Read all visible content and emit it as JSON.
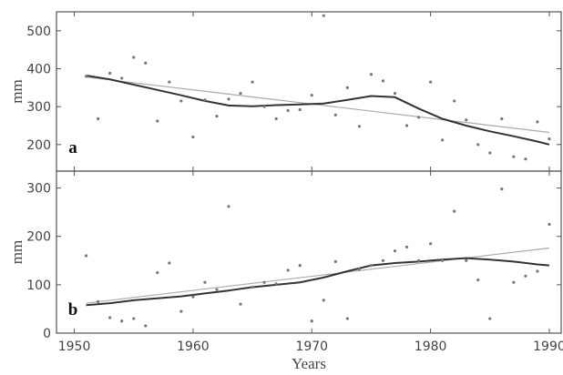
{
  "chart_data": {
    "type": "scatter",
    "xlabel": "Years",
    "xlim": [
      1948.5,
      1991
    ],
    "x_ticks": [
      1950,
      1960,
      1970,
      1980,
      1990
    ],
    "panels": [
      {
        "label": "a",
        "ylabel": "mm",
        "ylim": [
          130,
          550
        ],
        "y_ticks": [
          200,
          300,
          400,
          500
        ],
        "points": [
          [
            1951,
            380
          ],
          [
            1952,
            268
          ],
          [
            1953,
            388
          ],
          [
            1954,
            375
          ],
          [
            1955,
            430
          ],
          [
            1956,
            415
          ],
          [
            1957,
            262
          ],
          [
            1958,
            365
          ],
          [
            1959,
            315
          ],
          [
            1960,
            220
          ],
          [
            1961,
            318
          ],
          [
            1962,
            275
          ],
          [
            1963,
            320
          ],
          [
            1964,
            335
          ],
          [
            1965,
            365
          ],
          [
            1966,
            300
          ],
          [
            1967,
            268
          ],
          [
            1968,
            290
          ],
          [
            1969,
            292
          ],
          [
            1970,
            330
          ],
          [
            1971,
            540
          ],
          [
            1972,
            278
          ],
          [
            1973,
            350
          ],
          [
            1974,
            248
          ],
          [
            1975,
            385
          ],
          [
            1976,
            368
          ],
          [
            1977,
            335
          ],
          [
            1978,
            250
          ],
          [
            1979,
            272
          ],
          [
            1980,
            365
          ],
          [
            1981,
            212
          ],
          [
            1982,
            315
          ],
          [
            1983,
            265
          ],
          [
            1984,
            200
          ],
          [
            1985,
            178
          ],
          [
            1986,
            268
          ],
          [
            1987,
            168
          ],
          [
            1988,
            162
          ],
          [
            1989,
            260
          ],
          [
            1990,
            215
          ]
        ],
        "smooth": [
          [
            1951,
            382
          ],
          [
            1953,
            372
          ],
          [
            1955,
            358
          ],
          [
            1957,
            344
          ],
          [
            1959,
            330
          ],
          [
            1961,
            315
          ],
          [
            1963,
            303
          ],
          [
            1965,
            301
          ],
          [
            1967,
            304
          ],
          [
            1969,
            306
          ],
          [
            1971,
            308
          ],
          [
            1973,
            318
          ],
          [
            1975,
            328
          ],
          [
            1977,
            325
          ],
          [
            1979,
            295
          ],
          [
            1981,
            268
          ],
          [
            1983,
            250
          ],
          [
            1985,
            235
          ],
          [
            1987,
            222
          ],
          [
            1989,
            208
          ],
          [
            1990,
            200
          ]
        ],
        "trend": [
          [
            1951,
            378
          ],
          [
            1990,
            232
          ]
        ]
      },
      {
        "label": "b",
        "ylabel": "mm",
        "ylim": [
          0,
          335
        ],
        "y_ticks": [
          0,
          100,
          200,
          300
        ],
        "points": [
          [
            1951,
            160
          ],
          [
            1952,
            65
          ],
          [
            1953,
            32
          ],
          [
            1954,
            25
          ],
          [
            1955,
            30
          ],
          [
            1956,
            15
          ],
          [
            1957,
            125
          ],
          [
            1958,
            145
          ],
          [
            1959,
            45
          ],
          [
            1960,
            75
          ],
          [
            1961,
            105
          ],
          [
            1962,
            90
          ],
          [
            1963,
            262
          ],
          [
            1964,
            60
          ],
          [
            1965,
            95
          ],
          [
            1966,
            105
          ],
          [
            1967,
            102
          ],
          [
            1968,
            130
          ],
          [
            1969,
            140
          ],
          [
            1970,
            25
          ],
          [
            1971,
            68
          ],
          [
            1972,
            148
          ],
          [
            1973,
            30
          ],
          [
            1974,
            132
          ],
          [
            1975,
            140
          ],
          [
            1976,
            150
          ],
          [
            1977,
            170
          ],
          [
            1978,
            178
          ],
          [
            1979,
            150
          ],
          [
            1980,
            185
          ],
          [
            1981,
            150
          ],
          [
            1982,
            252
          ],
          [
            1983,
            150
          ],
          [
            1984,
            110
          ],
          [
            1985,
            30
          ],
          [
            1986,
            298
          ],
          [
            1987,
            105
          ],
          [
            1988,
            118
          ],
          [
            1989,
            128
          ],
          [
            1990,
            225
          ]
        ],
        "smooth": [
          [
            1951,
            58
          ],
          [
            1953,
            62
          ],
          [
            1955,
            68
          ],
          [
            1957,
            72
          ],
          [
            1959,
            76
          ],
          [
            1961,
            82
          ],
          [
            1963,
            88
          ],
          [
            1965,
            95
          ],
          [
            1967,
            100
          ],
          [
            1969,
            105
          ],
          [
            1971,
            115
          ],
          [
            1973,
            128
          ],
          [
            1975,
            140
          ],
          [
            1977,
            145
          ],
          [
            1979,
            148
          ],
          [
            1981,
            152
          ],
          [
            1983,
            155
          ],
          [
            1985,
            152
          ],
          [
            1987,
            148
          ],
          [
            1989,
            142
          ],
          [
            1990,
            140
          ]
        ],
        "trend": [
          [
            1951,
            62
          ],
          [
            1990,
            176
          ]
        ]
      }
    ]
  }
}
